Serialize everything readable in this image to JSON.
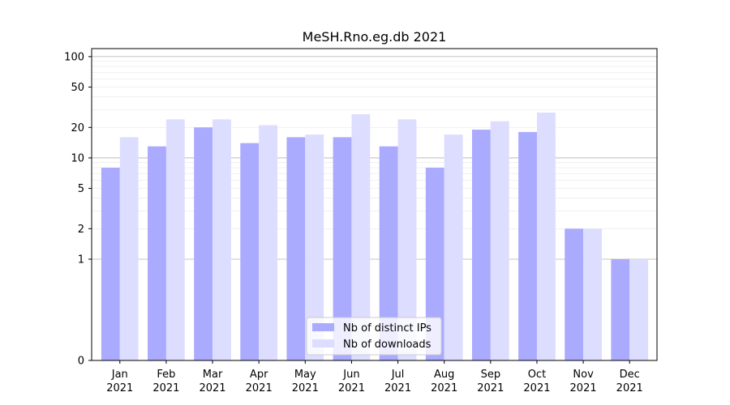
{
  "chart_data": {
    "type": "bar",
    "title": "MeSH.Rno.eg.db 2021",
    "xlabel": "",
    "ylabel": "",
    "categories": [
      "Jan",
      "Feb",
      "Mar",
      "Apr",
      "May",
      "Jun",
      "Jul",
      "Aug",
      "Sep",
      "Oct",
      "Nov",
      "Dec"
    ],
    "year_label": "2021",
    "series": [
      {
        "name": "Nb of distinct IPs",
        "values": [
          8,
          13,
          20,
          14,
          16,
          16,
          13,
          8,
          19,
          18,
          2,
          1
        ],
        "color": "#aaaaff"
      },
      {
        "name": "Nb of downloads",
        "values": [
          16,
          24,
          24,
          21,
          17,
          27,
          24,
          17,
          23,
          28,
          2,
          1
        ],
        "color": "#ddddff"
      }
    ],
    "y_scale": "symlog",
    "ylim": [
      0,
      120
    ],
    "yticks": [
      0,
      1,
      2,
      5,
      10,
      20,
      50,
      100
    ],
    "ytick_labels": [
      "0",
      "1",
      "2",
      "5",
      "10",
      "20",
      "50",
      "100"
    ],
    "grid": true,
    "legend_position": "bottom-center"
  }
}
